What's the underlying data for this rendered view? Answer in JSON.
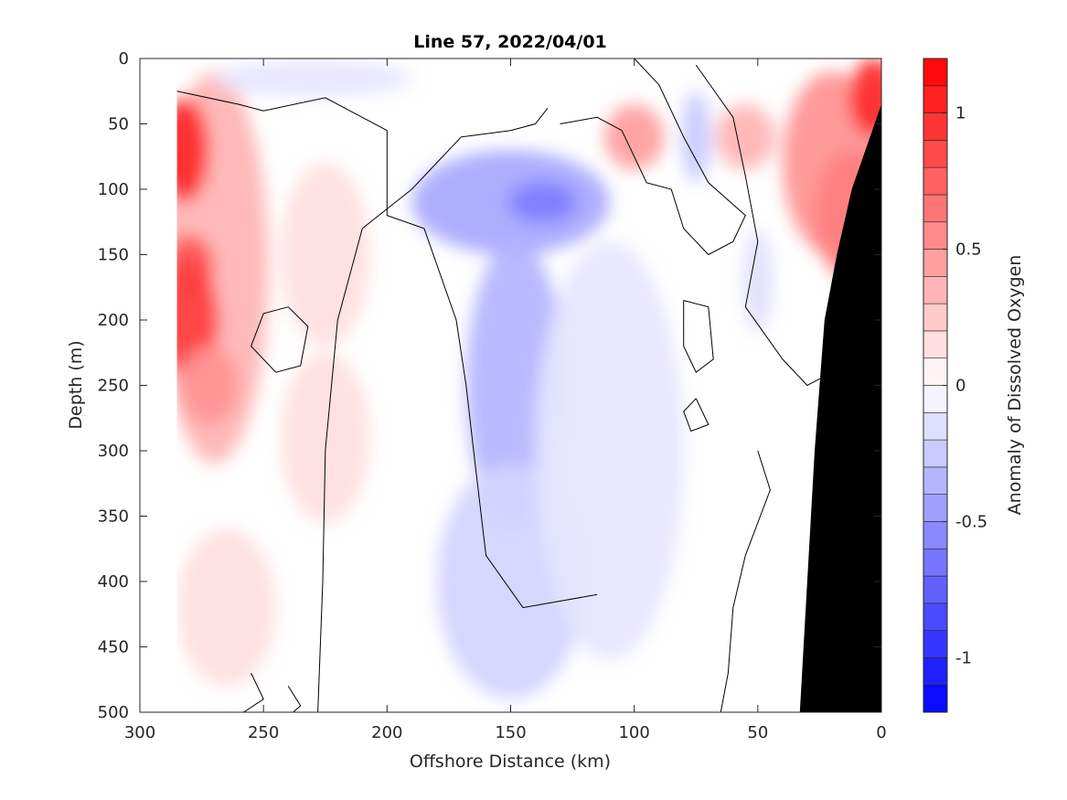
{
  "chart_data": {
    "type": "heatmap",
    "subtype": "filled-contour-section",
    "title": "Line 57, 2022/04/01",
    "xlabel": "Offshore Distance (km)",
    "ylabel": "Depth (m)",
    "colorbar_label": "Anomaly of Dissolved Oxygen",
    "xlim": [
      300,
      0
    ],
    "x_reversed": true,
    "ylim": [
      0,
      500
    ],
    "y_reversed": true,
    "x_ticks": [
      300,
      250,
      200,
      150,
      100,
      50,
      0
    ],
    "y_ticks": [
      0,
      50,
      100,
      150,
      200,
      250,
      300,
      350,
      400,
      450,
      500
    ],
    "colorbar": {
      "range": [
        -1.2,
        1.2
      ],
      "levels": [
        -1.2,
        -1.1,
        -1.0,
        -0.9,
        -0.8,
        -0.7,
        -0.6,
        -0.5,
        -0.4,
        -0.3,
        -0.2,
        -0.1,
        0,
        0.1,
        0.2,
        0.3,
        0.4,
        0.5,
        0.6,
        0.7,
        0.8,
        0.9,
        1.0,
        1.1,
        1.2
      ],
      "ticks": [
        -1,
        -0.5,
        0,
        0.5,
        1
      ],
      "tick_labels": [
        "-1",
        "-0.5",
        "0",
        "0.5",
        "1"
      ],
      "negative_color": "#0000ff",
      "zero_color": "#ffffff",
      "positive_color": "#ff0000"
    },
    "data_extent_x": [
      285,
      0
    ],
    "features": [
      {
        "name": "max positive anomaly",
        "x": 282,
        "depth": 70,
        "value": 1.0
      },
      {
        "name": "positive anomaly offshore core",
        "x": 280,
        "depth": 200,
        "value": 0.9
      },
      {
        "name": "positive anomaly nearshore surface",
        "x": 3,
        "depth": 30,
        "value": 1.0
      },
      {
        "name": "minimum negative anomaly",
        "x": 137,
        "depth": 110,
        "value": -0.6
      },
      {
        "name": "negative anomaly tongue",
        "x": 150,
        "depth": 350,
        "value": -0.2
      }
    ],
    "bathymetry_mask": {
      "color": "#000000",
      "profile": [
        [
          0,
          35
        ],
        [
          12,
          100
        ],
        [
          18,
          150
        ],
        [
          23,
          200
        ],
        [
          27,
          300
        ],
        [
          30,
          400
        ],
        [
          33,
          500
        ]
      ]
    },
    "grid": false
  }
}
